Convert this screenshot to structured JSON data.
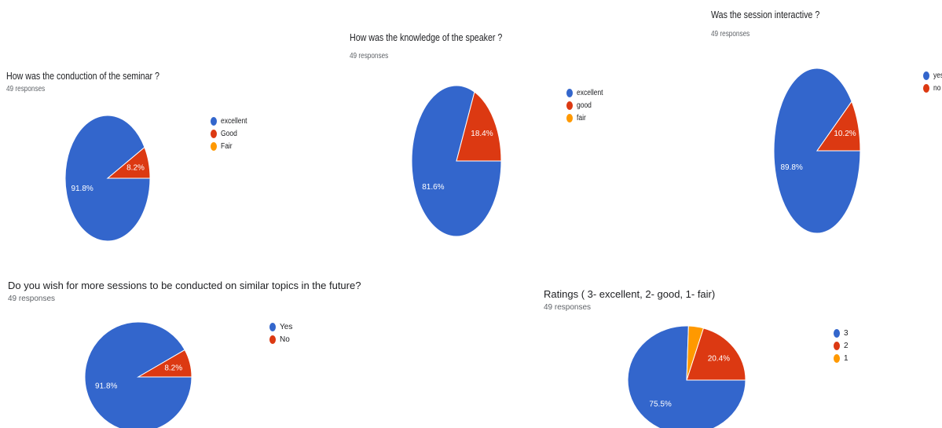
{
  "chart_data": [
    {
      "type": "pie",
      "title": "How was the conduction of the seminar ?",
      "subtitle": "49 responses",
      "legend_position": "right",
      "slices": [
        {
          "label": "excellent",
          "value": 91.8,
          "display": "91.8%",
          "color": "#3366cc"
        },
        {
          "label": "Good",
          "value": 8.2,
          "display": "8.2%",
          "color": "#dc3912"
        },
        {
          "label": "Fair",
          "value": 0,
          "display": "",
          "color": "#ff9900"
        }
      ]
    },
    {
      "type": "pie",
      "title": "How was the knowledge of the speaker ?",
      "subtitle": "49 responses",
      "legend_position": "right",
      "slices": [
        {
          "label": "excellent",
          "value": 81.6,
          "display": "81.6%",
          "color": "#3366cc"
        },
        {
          "label": "good",
          "value": 18.4,
          "display": "18.4%",
          "color": "#dc3912"
        },
        {
          "label": "fair",
          "value": 0,
          "display": "",
          "color": "#ff9900"
        }
      ]
    },
    {
      "type": "pie",
      "title": "Was the session interactive ?",
      "subtitle": "49 responses",
      "legend_position": "right",
      "slices": [
        {
          "label": "yes",
          "value": 89.8,
          "display": "89.8%",
          "color": "#3366cc"
        },
        {
          "label": "no",
          "value": 10.2,
          "display": "10.2%",
          "color": "#dc3912"
        }
      ]
    },
    {
      "type": "pie",
      "title": "Do you wish for more sessions to be conducted on similar topics in the future?",
      "subtitle": "49 responses",
      "legend_position": "right",
      "slices": [
        {
          "label": "Yes",
          "value": 91.8,
          "display": "91.8%",
          "color": "#3366cc"
        },
        {
          "label": "No",
          "value": 8.2,
          "display": "8.2%",
          "color": "#dc3912"
        }
      ]
    },
    {
      "type": "pie",
      "title": "Ratings (  3- excellent, 2- good, 1- fair)",
      "subtitle": "49 responses",
      "legend_position": "right",
      "slices": [
        {
          "label": "3",
          "value": 75.5,
          "display": "75.5%",
          "color": "#3366cc"
        },
        {
          "label": "2",
          "value": 20.4,
          "display": "20.4%",
          "color": "#dc3912"
        },
        {
          "label": "1",
          "value": 4.1,
          "display": "",
          "color": "#ff9900"
        }
      ]
    }
  ]
}
